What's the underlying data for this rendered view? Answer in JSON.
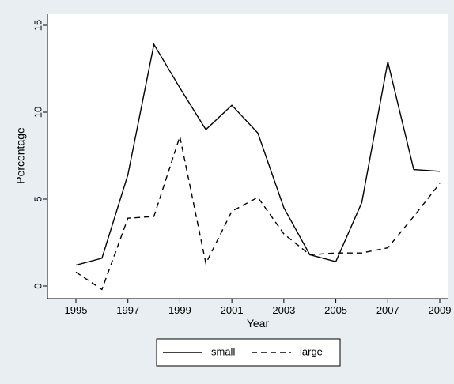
{
  "chart_data": {
    "type": "line",
    "title": "",
    "xlabel": "Year",
    "ylabel": "Percentage",
    "x": [
      1995,
      1996,
      1997,
      1998,
      1999,
      2000,
      2001,
      2002,
      2003,
      2004,
      2005,
      2006,
      2007,
      2008,
      2009
    ],
    "xticks": [
      "1995",
      "1997",
      "1999",
      "2001",
      "2003",
      "2005",
      "2007",
      "2009"
    ],
    "yticks": [
      "0",
      "5",
      "10",
      "15"
    ],
    "xlim": [
      1995,
      2009
    ],
    "ylim": [
      0,
      15
    ],
    "grid": false,
    "legend_position": "bottom",
    "series": [
      {
        "name": "small",
        "style": "solid",
        "values": [
          1.2,
          1.6,
          6.4,
          13.9,
          11.4,
          9.0,
          10.4,
          8.8,
          4.5,
          1.8,
          1.4,
          4.8,
          12.9,
          6.7,
          6.6
        ]
      },
      {
        "name": "large",
        "style": "dashed",
        "values": [
          0.8,
          -0.2,
          3.9,
          4.0,
          8.6,
          1.3,
          4.3,
          5.1,
          3.0,
          1.8,
          1.9,
          1.9,
          2.2,
          4.0,
          5.9
        ]
      }
    ],
    "colors": {
      "background": "#e8eef1",
      "plot_background": "#ffffff",
      "line": "#000000"
    }
  }
}
